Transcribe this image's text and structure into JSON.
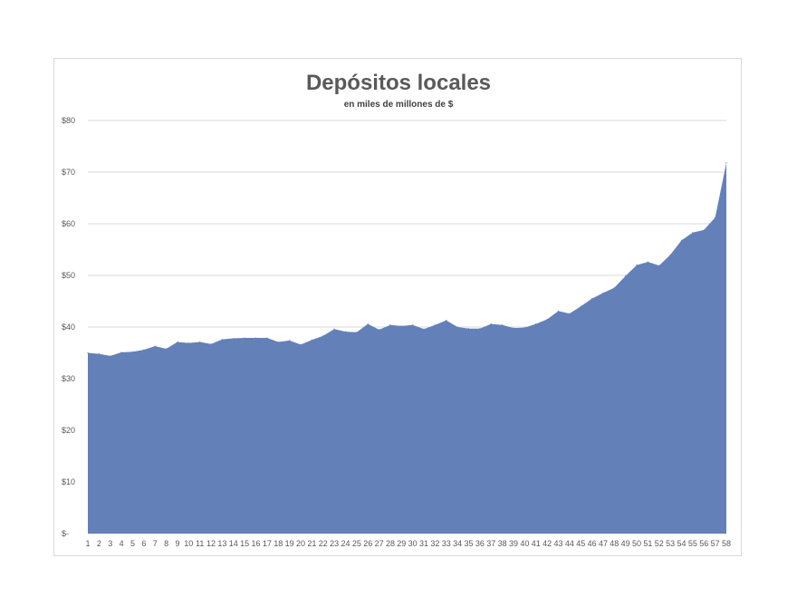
{
  "chart_data": {
    "type": "area",
    "title": "Depósitos locales",
    "subtitle": "en miles de millones  de $",
    "xlabel": "",
    "ylabel": "",
    "ylim": [
      0,
      80
    ],
    "grid": true,
    "yticks": [
      0,
      10,
      20,
      30,
      40,
      50,
      60,
      70,
      80
    ],
    "ytick_labels": [
      "$-",
      "$10",
      "$20",
      "$30",
      "$40",
      "$50",
      "$60",
      "$70",
      "$80"
    ],
    "x": [
      1,
      2,
      3,
      4,
      5,
      6,
      7,
      8,
      9,
      10,
      11,
      12,
      13,
      14,
      15,
      16,
      17,
      18,
      19,
      20,
      21,
      22,
      23,
      24,
      25,
      26,
      27,
      28,
      29,
      30,
      31,
      32,
      33,
      34,
      35,
      36,
      37,
      38,
      39,
      40,
      41,
      42,
      43,
      44,
      45,
      46,
      47,
      48,
      49,
      50,
      51,
      52,
      53,
      54,
      55,
      56,
      57,
      58
    ],
    "series": [
      {
        "color": "#6480b9",
        "values": [
          35.0,
          34.8,
          34.4,
          35.1,
          35.2,
          35.6,
          36.3,
          35.8,
          37.1,
          36.9,
          37.1,
          36.7,
          37.6,
          37.8,
          37.9,
          37.9,
          37.9,
          37.1,
          37.4,
          36.6,
          37.5,
          38.3,
          39.6,
          39.1,
          39.0,
          40.6,
          39.5,
          40.4,
          40.2,
          40.4,
          39.6,
          40.4,
          41.3,
          40.0,
          39.7,
          39.7,
          40.6,
          40.4,
          39.8,
          39.9,
          40.6,
          41.5,
          43.1,
          42.6,
          44.0,
          45.5,
          46.6,
          47.6,
          49.9,
          52.0,
          52.6,
          51.9,
          54.0,
          56.8,
          58.3,
          58.8,
          61.2,
          71.8
        ]
      }
    ]
  }
}
